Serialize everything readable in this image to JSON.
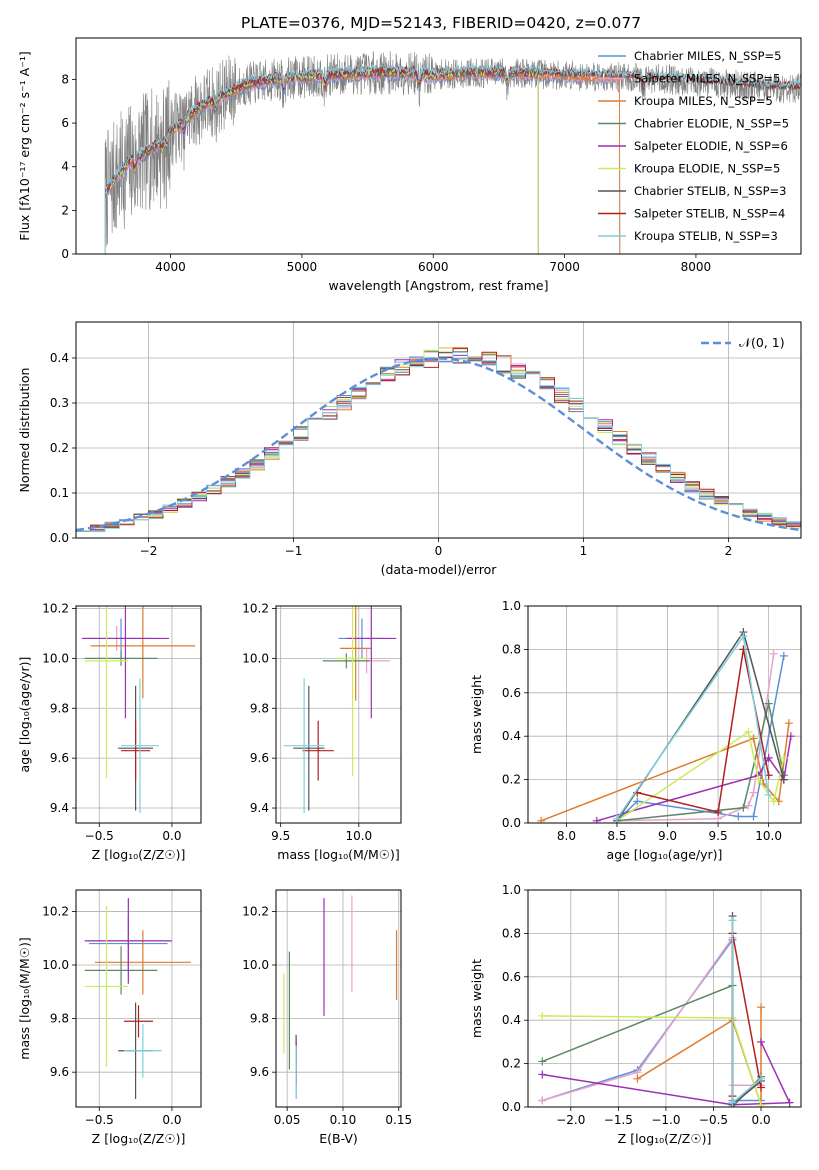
{
  "figure": {
    "title": "PLATE=0376, MJD=52143, FIBERID=0420, z=0.077"
  },
  "chart_data": [
    {
      "id": "spectrum",
      "type": "line",
      "xlabel": "wavelength [Angstrom, rest frame]",
      "ylabel": "Flux [fλ10⁻¹⁷ erg cm⁻² s⁻¹ A⁻¹]",
      "xlim": [
        3280,
        8800
      ],
      "ylim": [
        0,
        9.9
      ],
      "xticks": [
        "4000",
        "5000",
        "6000",
        "7000",
        "8000"
      ],
      "yticks": [
        "0",
        "2",
        "4",
        "6",
        "8"
      ],
      "grid": false,
      "legend_position": "right",
      "data_color": "#808080",
      "data_knots": [
        [
          3500,
          2.8
        ],
        [
          3600,
          3.6
        ],
        [
          3700,
          4.3
        ],
        [
          3800,
          4.6
        ],
        [
          3900,
          5.0
        ],
        [
          4000,
          5.6
        ],
        [
          4100,
          6.1
        ],
        [
          4200,
          6.6
        ],
        [
          4400,
          7.3
        ],
        [
          4600,
          7.8
        ],
        [
          4800,
          8.0
        ],
        [
          5000,
          8.1
        ],
        [
          5200,
          8.2
        ],
        [
          5500,
          8.3
        ],
        [
          5800,
          8.3
        ],
        [
          6000,
          8.2
        ],
        [
          6300,
          8.3
        ],
        [
          6600,
          8.3
        ],
        [
          7000,
          8.2
        ],
        [
          7400,
          8.1
        ],
        [
          7800,
          8.0
        ],
        [
          8200,
          7.8
        ],
        [
          8600,
          7.6
        ]
      ],
      "series": [
        {
          "name": "Chabrier MILES, N_SSP=5",
          "color": "#5b8fd9",
          "x_end": 7420
        },
        {
          "name": "Salpeter MILES, N_SSP=5",
          "color": "#e8a3c9",
          "x_end": 7420
        },
        {
          "name": "Kroupa MILES, N_SSP=5",
          "color": "#e07b2c",
          "x_end": 7420
        },
        {
          "name": "Chabrier ELODIE, N_SSP=5",
          "color": "#5a8a64",
          "x_end": 6800
        },
        {
          "name": "Salpeter ELODIE, N_SSP=6",
          "color": "#9d2fb5",
          "x_end": 6800
        },
        {
          "name": "Kroupa ELODIE, N_SSP=5",
          "color": "#c9ec5c",
          "x_end": 6800
        },
        {
          "name": "Chabrier STELIB, N_SSP=3",
          "color": "#555555",
          "x_end": 8800
        },
        {
          "name": "Salpeter STELIB, N_SSP=4",
          "color": "#b22020",
          "x_end": 8800
        },
        {
          "name": "Kroupa STELIB, N_SSP=3",
          "color": "#7fcfe0",
          "x_end": 8800
        }
      ]
    },
    {
      "id": "residuals",
      "type": "bar",
      "xlabel": "(data-model)/error",
      "ylabel": "Normed distribution",
      "xlim": [
        -2.5,
        2.5
      ],
      "ylim": [
        0,
        0.48
      ],
      "xticks": [
        "−2",
        "−1",
        "0",
        "1",
        "2"
      ],
      "yticks": [
        "0.0",
        "0.1",
        "0.2",
        "0.3",
        "0.4"
      ],
      "grid": true,
      "legend_position": "top-right",
      "legend_label": "𝒩(0, 1)",
      "curve_color": "#5b8fd9",
      "bin_width": 0.1,
      "base_values": [
        0.017,
        0.022,
        0.028,
        0.035,
        0.044,
        0.054,
        0.065,
        0.078,
        0.092,
        0.108,
        0.125,
        0.144,
        0.164,
        0.186,
        0.208,
        0.232,
        0.256,
        0.279,
        0.302,
        0.324,
        0.344,
        0.362,
        0.377,
        0.389,
        0.398,
        0.403,
        0.404,
        0.402,
        0.396,
        0.386,
        0.373,
        0.357,
        0.338,
        0.317,
        0.295,
        0.271,
        0.247,
        0.222,
        0.198,
        0.175,
        0.153,
        0.133,
        0.114,
        0.097,
        0.082,
        0.068,
        0.056,
        0.046,
        0.037,
        0.029
      ]
    },
    {
      "id": "z-age",
      "type": "scatter",
      "xlabel": "Z [log₁₀(Z/Z☉)]",
      "ylabel": "age  [log₁₀(age/yr)]",
      "xlim": [
        -0.66,
        0.2
      ],
      "ylim": [
        9.34,
        10.21
      ],
      "xticks": [
        "−0.5",
        "0.0"
      ],
      "yticks": [
        "9.4",
        "9.6",
        "9.8",
        "10.0",
        "10.2"
      ],
      "grid": true,
      "points": [
        {
          "x": -0.35,
          "y": 10.08,
          "xerr": 0.25,
          "yerr": 0.08,
          "color": "#5b8fd9"
        },
        {
          "x": -0.38,
          "y": 10.08,
          "xerr": 0.22,
          "yerr": 0.05,
          "color": "#e8a3c9"
        },
        {
          "x": -0.2,
          "y": 10.05,
          "xerr": 0.36,
          "yerr": 0.21,
          "color": "#e07b2c"
        },
        {
          "x": -0.35,
          "y": 10.0,
          "xerr": 0.25,
          "yerr": 0.03,
          "color": "#5a8a64"
        },
        {
          "x": -0.32,
          "y": 10.08,
          "xerr": 0.3,
          "yerr": 0.32,
          "color": "#9d2fb5"
        },
        {
          "x": -0.45,
          "y": 9.99,
          "xerr": 0.15,
          "yerr": 0.47,
          "color": "#c9ec5c"
        },
        {
          "x": -0.25,
          "y": 9.64,
          "xerr": 0.12,
          "yerr": 0.25,
          "color": "#555555"
        },
        {
          "x": -0.25,
          "y": 9.63,
          "xerr": 0.1,
          "yerr": 0.12,
          "color": "#b22020"
        },
        {
          "x": -0.22,
          "y": 9.65,
          "xerr": 0.13,
          "yerr": 0.27,
          "color": "#7fcfe0"
        }
      ]
    },
    {
      "id": "mass-age",
      "type": "scatter",
      "xlabel": "mass [log₁₀(M/M☉)]",
      "ylabel": "",
      "xlim": [
        9.47,
        10.27
      ],
      "ylim": [
        9.34,
        10.21
      ],
      "xticks": [
        "9.5",
        "10.0"
      ],
      "yticks": [
        "9.4",
        "9.6",
        "9.8",
        "10.0",
        "10.2"
      ],
      "grid": true,
      "points": [
        {
          "x": 10.02,
          "y": 10.08,
          "xerr": 0.15,
          "yerr": 0.08,
          "color": "#5b8fd9"
        },
        {
          "x": 10.05,
          "y": 9.99,
          "xerr": 0.15,
          "yerr": 0.05,
          "color": "#e8a3c9"
        },
        {
          "x": 9.98,
          "y": 10.04,
          "xerr": 0.1,
          "yerr": 0.21,
          "color": "#e07b2c"
        },
        {
          "x": 9.92,
          "y": 9.99,
          "xerr": 0.15,
          "yerr": 0.03,
          "color": "#5a8a64"
        },
        {
          "x": 10.08,
          "y": 10.08,
          "xerr": 0.16,
          "yerr": 0.32,
          "color": "#9d2fb5"
        },
        {
          "x": 9.96,
          "y": 10.0,
          "xerr": 0.1,
          "yerr": 0.47,
          "color": "#c9ec5c"
        },
        {
          "x": 9.68,
          "y": 9.64,
          "xerr": 0.1,
          "yerr": 0.25,
          "color": "#555555"
        },
        {
          "x": 9.74,
          "y": 9.63,
          "xerr": 0.1,
          "yerr": 0.12,
          "color": "#b22020"
        },
        {
          "x": 9.65,
          "y": 9.65,
          "xerr": 0.13,
          "yerr": 0.27,
          "color": "#7fcfe0"
        }
      ]
    },
    {
      "id": "age-weight",
      "type": "line",
      "xlabel": "age  [log₁₀(age/yr)]",
      "ylabel": "mass weight",
      "xlim": [
        7.62,
        10.32
      ],
      "ylim": [
        0,
        1.0
      ],
      "xticks": [
        "8.0",
        "8.5",
        "9.0",
        "9.5",
        "10.0"
      ],
      "yticks": [
        "0.0",
        "0.2",
        "0.4",
        "0.6",
        "0.8",
        "1.0"
      ],
      "grid": true,
      "series": [
        {
          "color": "#5b8fd9",
          "points": [
            [
              8.5,
              0.01
            ],
            [
              8.7,
              0.1
            ],
            [
              9.7,
              0.03
            ],
            [
              9.85,
              0.03
            ],
            [
              10.15,
              0.77
            ]
          ]
        },
        {
          "color": "#e8a3c9",
          "points": [
            [
              8.5,
              0.01
            ],
            [
              9.5,
              0.02
            ],
            [
              9.8,
              0.08
            ],
            [
              9.85,
              0.14
            ],
            [
              10.05,
              0.78
            ]
          ]
        },
        {
          "color": "#e07b2c",
          "points": [
            [
              7.75,
              0.01
            ],
            [
              9.85,
              0.39
            ],
            [
              9.95,
              0.18
            ],
            [
              10.1,
              0.1
            ],
            [
              10.2,
              0.46
            ]
          ]
        },
        {
          "color": "#5a8a64",
          "points": [
            [
              8.5,
              0.01
            ],
            [
              9.75,
              0.07
            ],
            [
              10.0,
              0.55
            ],
            [
              10.15,
              0.22
            ]
          ]
        },
        {
          "color": "#9d2fb5",
          "points": [
            [
              8.3,
              0.01
            ],
            [
              9.9,
              0.22
            ],
            [
              10.0,
              0.3
            ],
            [
              10.15,
              0.2
            ],
            [
              10.22,
              0.4
            ]
          ]
        },
        {
          "color": "#c9ec5c",
          "points": [
            [
              8.5,
              0.01
            ],
            [
              9.8,
              0.42
            ],
            [
              9.9,
              0.2
            ],
            [
              10.05,
              0.1
            ],
            [
              10.15,
              0.3
            ]
          ]
        },
        {
          "color": "#555555",
          "points": [
            [
              8.5,
              0.01
            ],
            [
              9.75,
              0.88
            ],
            [
              10.15,
              0.2
            ]
          ]
        },
        {
          "color": "#b22020",
          "points": [
            [
              8.7,
              0.14
            ],
            [
              9.5,
              0.05
            ],
            [
              9.75,
              0.8
            ],
            [
              10.0,
              0.22
            ]
          ]
        },
        {
          "color": "#7fcfe0",
          "points": [
            [
              8.5,
              0.02
            ],
            [
              9.75,
              0.86
            ],
            [
              10.0,
              0.13
            ]
          ]
        }
      ]
    },
    {
      "id": "z-mass",
      "type": "scatter",
      "xlabel": "Z [log₁₀(Z/Z☉)]",
      "ylabel": "mass [log₁₀(M/M☉)]",
      "xlim": [
        -0.66,
        0.2
      ],
      "ylim": [
        9.47,
        10.28
      ],
      "xticks": [
        "−0.5",
        "0.0"
      ],
      "yticks": [
        "9.6",
        "9.8",
        "10.0",
        "10.2"
      ],
      "grid": true,
      "points": [
        {
          "x": -0.3,
          "y": 10.08,
          "xerr": 0.27,
          "yerr": 0.1,
          "color": "#5b8fd9"
        },
        {
          "x": -0.3,
          "y": 10.09,
          "xerr": 0.29,
          "yerr": 0.09,
          "color": "#e8a3c9"
        },
        {
          "x": -0.2,
          "y": 10.01,
          "xerr": 0.33,
          "yerr": 0.12,
          "color": "#e07b2c"
        },
        {
          "x": -0.35,
          "y": 9.98,
          "xerr": 0.25,
          "yerr": 0.09,
          "color": "#5a8a64"
        },
        {
          "x": -0.3,
          "y": 10.09,
          "xerr": 0.3,
          "yerr": 0.16,
          "color": "#9d2fb5"
        },
        {
          "x": -0.45,
          "y": 9.92,
          "xerr": 0.15,
          "yerr": 0.3,
          "color": "#c9ec5c"
        },
        {
          "x": -0.25,
          "y": 9.68,
          "xerr": 0.12,
          "yerr": 0.18,
          "color": "#555555"
        },
        {
          "x": -0.23,
          "y": 9.79,
          "xerr": 0.1,
          "yerr": 0.06,
          "color": "#b22020"
        },
        {
          "x": -0.2,
          "y": 9.68,
          "xerr": 0.13,
          "yerr": 0.1,
          "color": "#7fcfe0"
        }
      ]
    },
    {
      "id": "ebv-mass",
      "type": "scatter",
      "xlabel": "E(B-V)",
      "ylabel": "",
      "xlim": [
        0.04,
        0.152
      ],
      "ylim": [
        9.47,
        10.28
      ],
      "xticks": [
        "0.05",
        "0.10",
        "0.15"
      ],
      "yticks": [
        "9.6",
        "9.8",
        "10.0",
        "10.2"
      ],
      "grid": true,
      "points": [
        {
          "x": 0.058,
          "y": 9.68,
          "yerr": 0.05,
          "color": "#5b8fd9"
        },
        {
          "x": 0.108,
          "y": 10.08,
          "yerr": 0.18,
          "color": "#e8a3c9"
        },
        {
          "x": 0.148,
          "y": 10.0,
          "yerr": 0.13,
          "color": "#e07b2c"
        },
        {
          "x": 0.052,
          "y": 9.83,
          "yerr": 0.22,
          "color": "#5a8a64"
        },
        {
          "x": 0.083,
          "y": 10.03,
          "yerr": 0.22,
          "color": "#9d2fb5"
        },
        {
          "x": 0.047,
          "y": 9.82,
          "yerr": 0.15,
          "color": "#c9ec5c"
        },
        {
          "x": 0.058,
          "y": 9.62,
          "yerr": 0.12,
          "color": "#555555"
        },
        {
          "x": 0.058,
          "y": 9.63,
          "yerr": 0.08,
          "color": "#b22020"
        },
        {
          "x": 0.058,
          "y": 9.6,
          "yerr": 0.1,
          "color": "#7fcfe0"
        }
      ]
    },
    {
      "id": "z-weight",
      "type": "line",
      "xlabel": "Z [log₁₀(Z/Z☉)]",
      "ylabel": "mass weight",
      "xlim": [
        -2.45,
        0.42
      ],
      "ylim": [
        0,
        1.0
      ],
      "xticks": [
        "−2.0",
        "−1.5",
        "−1.0",
        "−0.5",
        "0.0"
      ],
      "yticks": [
        "0.0",
        "0.2",
        "0.4",
        "0.6",
        "0.8",
        "1.0"
      ],
      "grid": true,
      "series": [
        {
          "color": "#5b8fd9",
          "points": [
            [
              -2.3,
              0.03
            ],
            [
              -1.3,
              0.17
            ],
            [
              -0.3,
              0.77
            ],
            [
              -0.3,
              0.03
            ],
            [
              0.0,
              0.03
            ]
          ]
        },
        {
          "color": "#e8a3c9",
          "points": [
            [
              -2.3,
              0.03
            ],
            [
              -1.3,
              0.16
            ],
            [
              -0.3,
              0.78
            ],
            [
              -0.3,
              0.1
            ],
            [
              0.0,
              0.1
            ]
          ]
        },
        {
          "color": "#e07b2c",
          "points": [
            [
              -1.3,
              0.13
            ],
            [
              -0.3,
              0.4
            ],
            [
              0.0,
              0.01
            ],
            [
              0.0,
              0.46
            ]
          ]
        },
        {
          "color": "#5a8a64",
          "points": [
            [
              -2.3,
              0.21
            ],
            [
              -0.3,
              0.56
            ],
            [
              -0.3,
              0.0
            ],
            [
              0.0,
              0.14
            ]
          ]
        },
        {
          "color": "#9d2fb5",
          "points": [
            [
              -2.3,
              0.15
            ],
            [
              -0.3,
              0.01
            ],
            [
              0.3,
              0.02
            ],
            [
              0.0,
              0.3
            ]
          ]
        },
        {
          "color": "#c9ec5c",
          "points": [
            [
              -2.3,
              0.42
            ],
            [
              -0.3,
              0.41
            ],
            [
              0.0,
              0.01
            ]
          ]
        },
        {
          "color": "#555555",
          "points": [
            [
              -0.3,
              0.88
            ],
            [
              -0.3,
              0.01
            ],
            [
              0.0,
              0.12
            ]
          ]
        },
        {
          "color": "#b22020",
          "points": [
            [
              -0.3,
              0.05
            ],
            [
              -0.3,
              0.8
            ],
            [
              0.0,
              0.09
            ]
          ]
        },
        {
          "color": "#7fcfe0",
          "points": [
            [
              -0.3,
              0.86
            ],
            [
              -0.3,
              0.02
            ],
            [
              0.0,
              0.13
            ]
          ]
        }
      ]
    }
  ]
}
